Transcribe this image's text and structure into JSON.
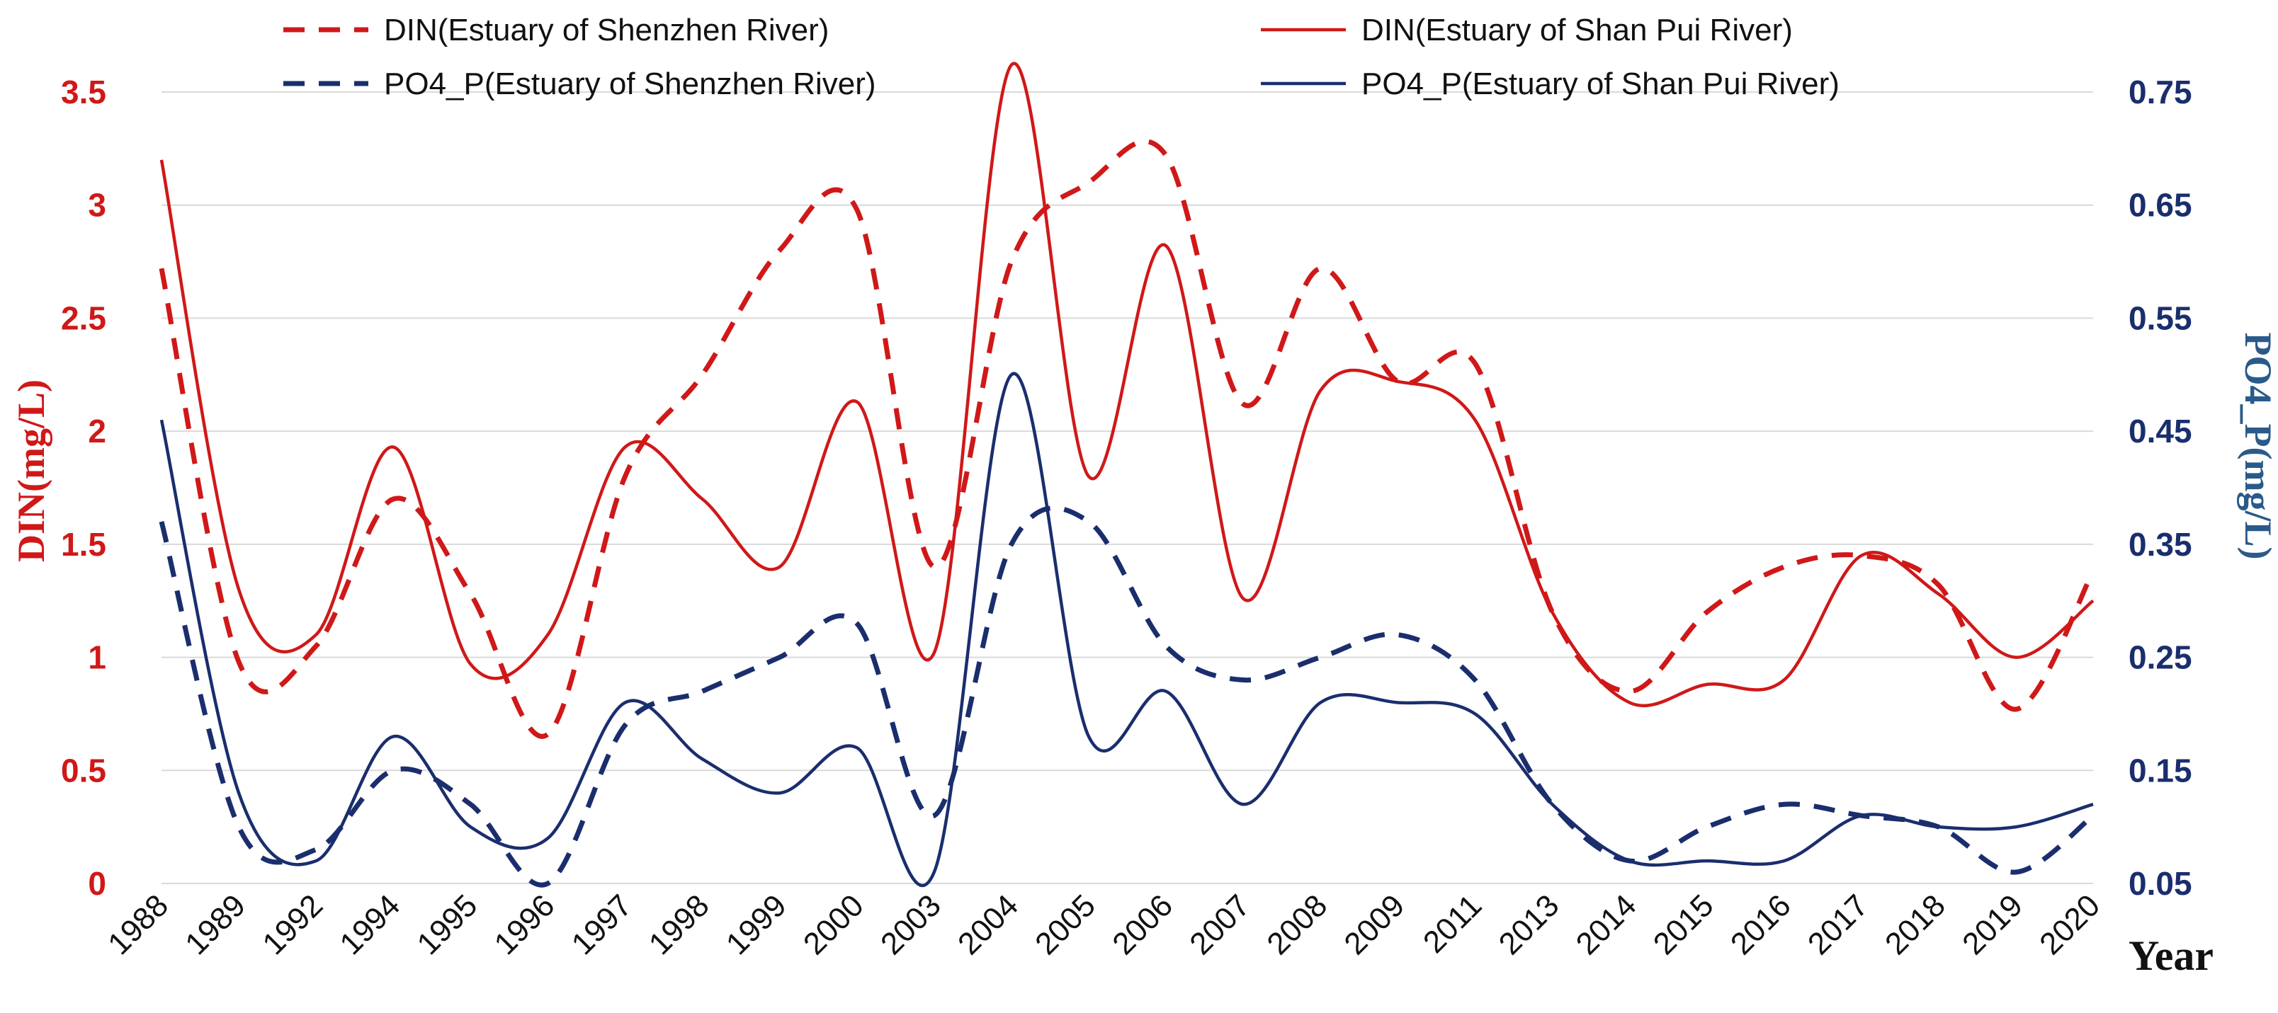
{
  "chart_data": {
    "type": "line",
    "title": "",
    "xlabel": "Year",
    "ylabel_left": "DIN(mg/L)",
    "ylabel_right": "PO4_P(mg/L)",
    "categories": [
      "1988",
      "1989",
      "1992",
      "1994",
      "1995",
      "1996",
      "1997",
      "1998",
      "1999",
      "2000",
      "2003",
      "2004",
      "2005",
      "2006",
      "2007",
      "2008",
      "2009",
      "2011",
      "2013",
      "2014",
      "2015",
      "2016",
      "2017",
      "2018",
      "2019",
      "2020"
    ],
    "y_left": {
      "min": 0,
      "max": 3.5,
      "ticks": [
        "0",
        "0.5",
        "1",
        "1.5",
        "2",
        "2.5",
        "3",
        "3.5"
      ],
      "tick_values": [
        0,
        0.5,
        1,
        1.5,
        2,
        2.5,
        3,
        3.5
      ]
    },
    "y_right": {
      "min": 0.05,
      "max": 0.75,
      "ticks": [
        "0.05",
        "0.15",
        "0.25",
        "0.35",
        "0.45",
        "0.55",
        "0.65",
        "0.75"
      ],
      "tick_values": [
        0.05,
        0.15,
        0.25,
        0.35,
        0.45,
        0.55,
        0.65,
        0.75
      ]
    },
    "grid": true,
    "legend_position": "top",
    "series": [
      {
        "name": "DIN(Estuary of Shenzhen River)",
        "axis": "left",
        "style": "dashed",
        "color": "#d01818",
        "values": [
          2.72,
          0.98,
          1.05,
          1.7,
          1.28,
          0.66,
          1.8,
          2.25,
          2.8,
          2.98,
          1.4,
          2.75,
          3.1,
          3.22,
          2.12,
          2.72,
          2.22,
          2.3,
          1.2,
          0.85,
          1.2,
          1.4,
          1.45,
          1.32,
          0.77,
          1.38
        ]
      },
      {
        "name": "DIN(Estuary of  Shan Pui River)",
        "axis": "left",
        "style": "solid",
        "color": "#d01818",
        "values": [
          3.2,
          1.3,
          1.1,
          1.93,
          0.97,
          1.1,
          1.93,
          1.7,
          1.4,
          2.13,
          1.02,
          3.62,
          1.8,
          2.82,
          1.26,
          2.18,
          2.22,
          2.05,
          1.2,
          0.8,
          0.88,
          0.9,
          1.45,
          1.28,
          1.0,
          1.25
        ]
      },
      {
        "name": "PO4_P(Estuary of Shenzhen River)",
        "axis": "right",
        "style": "dashed",
        "color": "#1a2e6e",
        "values": [
          0.37,
          0.1,
          0.08,
          0.15,
          0.12,
          0.05,
          0.19,
          0.22,
          0.25,
          0.28,
          0.11,
          0.35,
          0.37,
          0.26,
          0.23,
          0.25,
          0.27,
          0.23,
          0.12,
          0.07,
          0.1,
          0.12,
          0.11,
          0.1,
          0.06,
          0.11
        ]
      },
      {
        "name": "PO4_P(Estuary  of  Shan Pui River)",
        "axis": "right",
        "style": "solid",
        "color": "#1a2e6e",
        "values": [
          0.46,
          0.13,
          0.07,
          0.18,
          0.1,
          0.09,
          0.21,
          0.16,
          0.13,
          0.17,
          0.06,
          0.5,
          0.18,
          0.22,
          0.12,
          0.21,
          0.21,
          0.2,
          0.12,
          0.07,
          0.07,
          0.07,
          0.11,
          0.1,
          0.1,
          0.12
        ]
      }
    ]
  }
}
